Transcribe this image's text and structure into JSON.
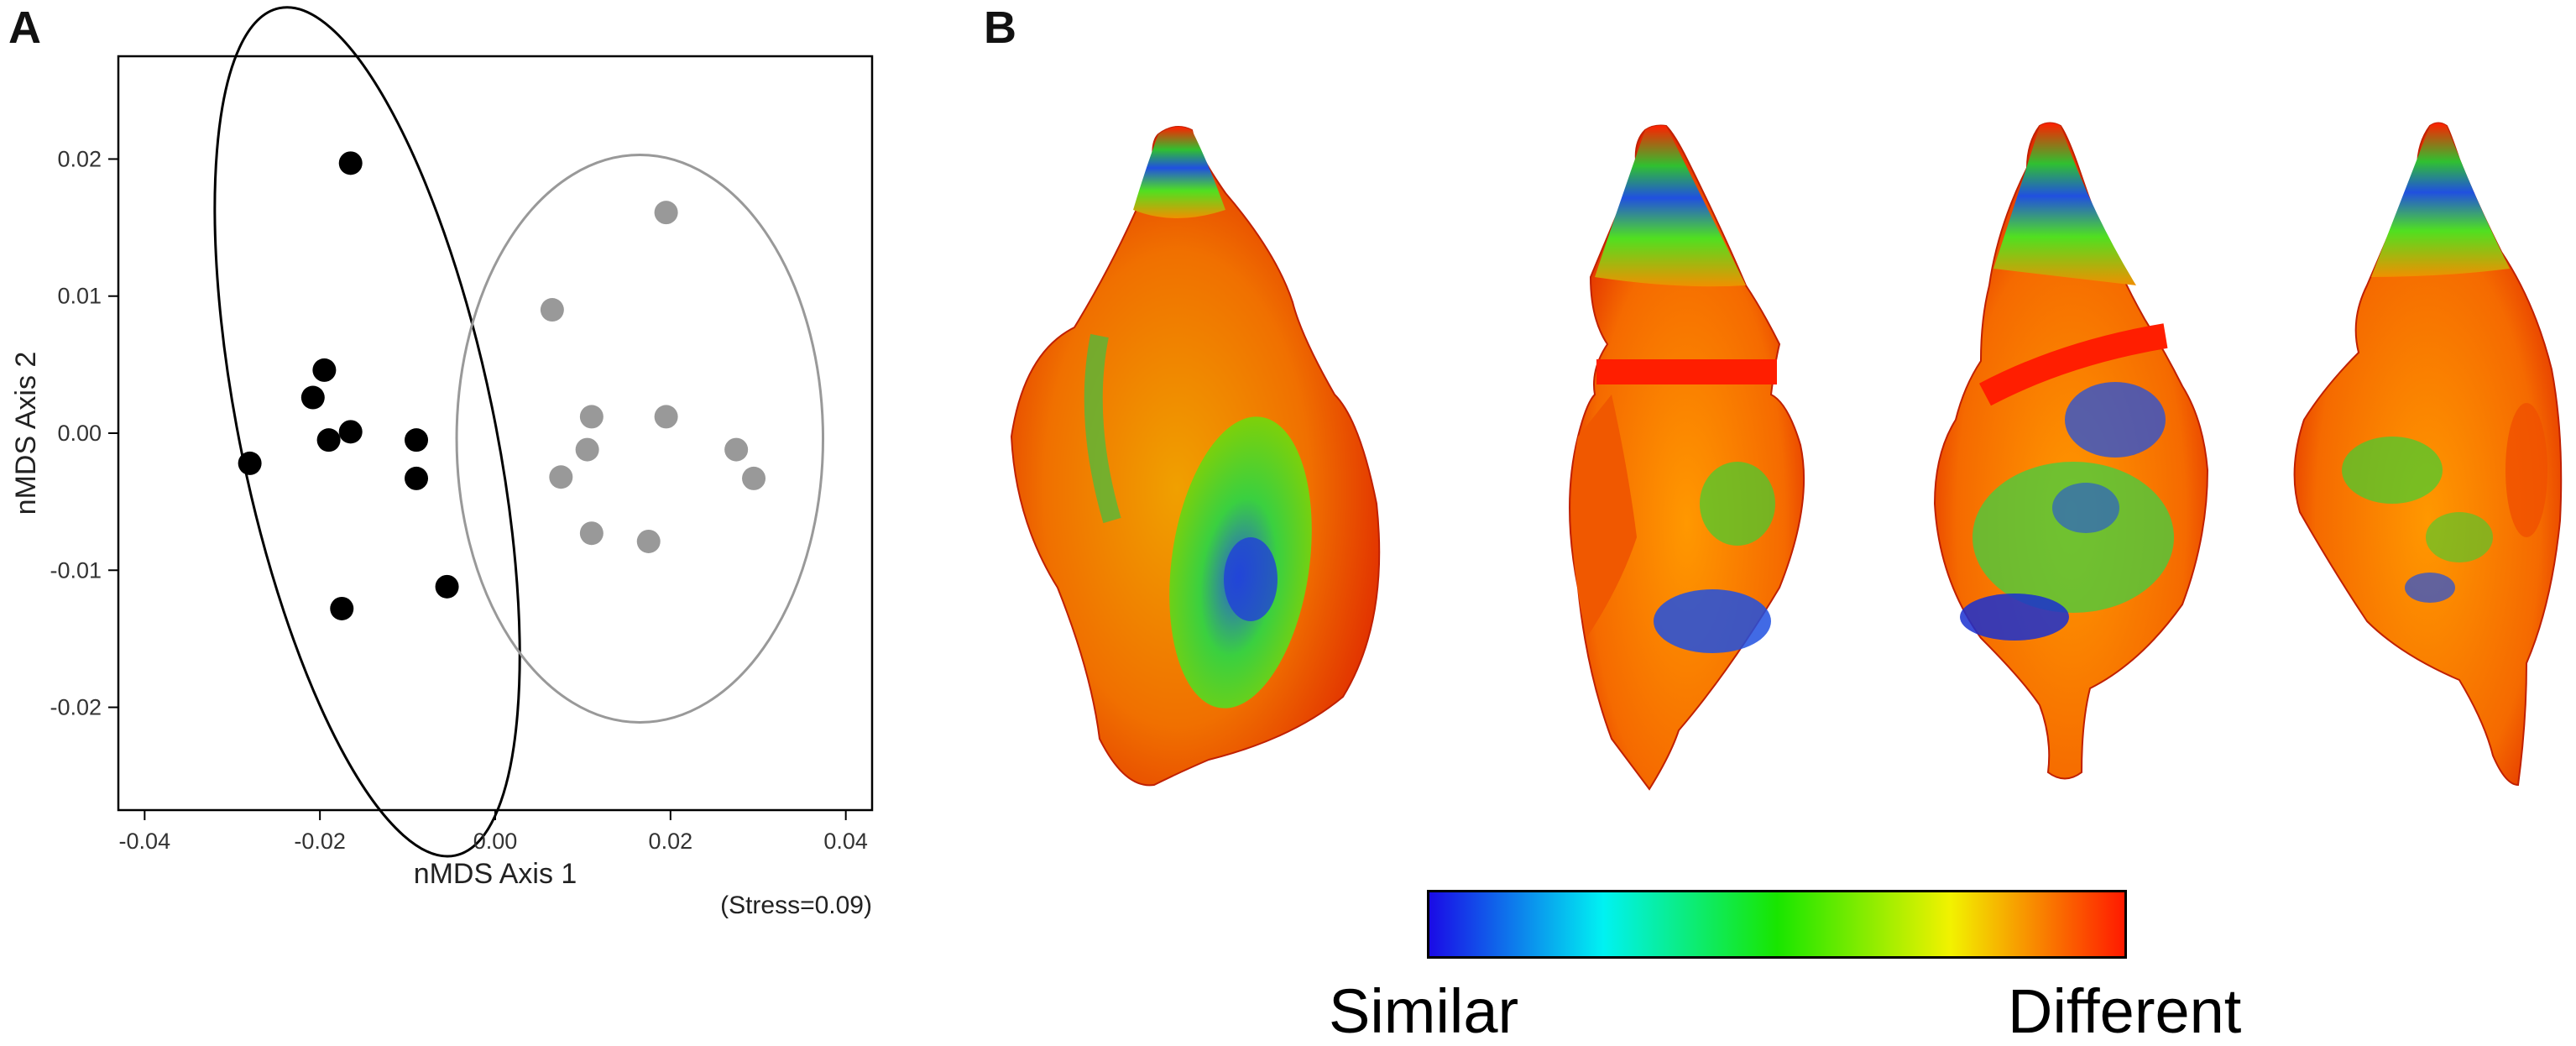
{
  "panel_a_label": "A",
  "panel_b_label": "B",
  "chart_data": {
    "type": "scatter",
    "title": "",
    "xlabel": "nMDS Axis 1",
    "ylabel": "nMDS Axis 2",
    "xlim": [
      -0.043,
      0.043
    ],
    "ylim": [
      -0.0275,
      0.0275
    ],
    "xticks": [
      -0.04,
      -0.02,
      0.0,
      0.02,
      0.04
    ],
    "xtick_labels": [
      "-0.04",
      "-0.02",
      "0.00",
      "0.02",
      "0.04"
    ],
    "yticks": [
      -0.02,
      -0.01,
      0.0,
      0.01,
      0.02
    ],
    "ytick_labels": [
      "-0.02",
      "-0.01",
      "0.00",
      "0.01",
      "0.02"
    ],
    "grid": false,
    "annotation": "(Stress=0.09)",
    "series": [
      {
        "color": "#000000",
        "points": [
          {
            "x": -0.0165,
            "y": 0.0197
          },
          {
            "x": -0.0195,
            "y": 0.0046
          },
          {
            "x": -0.0208,
            "y": 0.0026
          },
          {
            "x": -0.019,
            "y": -0.0005
          },
          {
            "x": -0.0165,
            "y": 0.0001
          },
          {
            "x": -0.009,
            "y": -0.0005
          },
          {
            "x": -0.009,
            "y": -0.0033
          },
          {
            "x": -0.028,
            "y": -0.0022
          },
          {
            "x": -0.0055,
            "y": -0.0112
          },
          {
            "x": -0.0175,
            "y": -0.0128
          }
        ],
        "ellipse": {
          "cx": -0.0146,
          "cy": 0.0001,
          "rx": 0.0325,
          "ry": 0.0136,
          "angle_deg": 108
        }
      },
      {
        "color": "#999999",
        "points": [
          {
            "x": 0.0195,
            "y": 0.0161
          },
          {
            "x": 0.0065,
            "y": 0.009
          },
          {
            "x": 0.011,
            "y": 0.0012
          },
          {
            "x": 0.0195,
            "y": 0.0012
          },
          {
            "x": 0.0105,
            "y": -0.0012
          },
          {
            "x": 0.0075,
            "y": -0.0032
          },
          {
            "x": 0.0275,
            "y": -0.0012
          },
          {
            "x": 0.0295,
            "y": -0.0033
          },
          {
            "x": 0.011,
            "y": -0.0073
          },
          {
            "x": 0.0175,
            "y": -0.0079
          }
        ],
        "ellipse": {
          "cx": 0.0165,
          "cy": -0.0004,
          "rx": 0.0209,
          "ry": 0.0207,
          "angle_deg": 0
        }
      }
    ]
  },
  "shell_views": [
    {
      "view": "apertural"
    },
    {
      "view": "left-lateral"
    },
    {
      "view": "abapertural"
    },
    {
      "view": "right-lateral"
    }
  ],
  "colorbar": {
    "colors": [
      "#1a0be6",
      "#00f2f2",
      "#18e600",
      "#f2f200",
      "#ff1a00"
    ],
    "low_label": "Similar",
    "high_label": "Different"
  }
}
